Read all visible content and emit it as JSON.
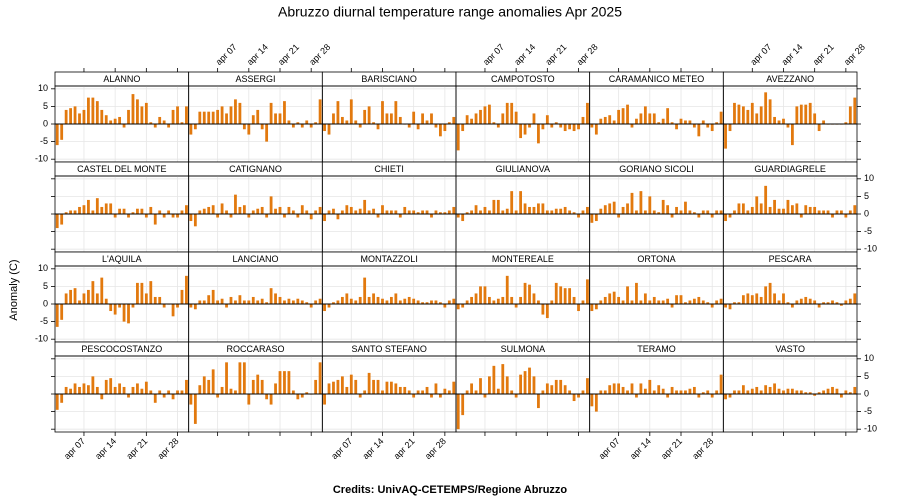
{
  "chart_data": {
    "type": "bar",
    "title": "Abruzzo diurnal temperature range anomalies Apr 2025",
    "ylabel": "Anomaly (C)",
    "caption": "Credits: UnivAQ-CETEMPS/Regione Abruzzo",
    "color": "#e2790e",
    "grid": true,
    "ylim": [
      -10.8,
      10.8
    ],
    "yticks": [
      -10,
      -5,
      0,
      5,
      10
    ],
    "x": [
      "2025-04-01",
      "2025-04-02",
      "2025-04-03",
      "2025-04-04",
      "2025-04-05",
      "2025-04-06",
      "2025-04-07",
      "2025-04-08",
      "2025-04-09",
      "2025-04-10",
      "2025-04-11",
      "2025-04-12",
      "2025-04-13",
      "2025-04-14",
      "2025-04-15",
      "2025-04-16",
      "2025-04-17",
      "2025-04-18",
      "2025-04-19",
      "2025-04-20",
      "2025-04-21",
      "2025-04-22",
      "2025-04-23",
      "2025-04-24",
      "2025-04-25",
      "2025-04-26",
      "2025-04-27",
      "2025-04-28",
      "2025-04-29",
      "2025-04-30"
    ],
    "xticks": [
      {
        "value": "2025-04-07",
        "label": "apr 07"
      },
      {
        "value": "2025-04-14",
        "label": "apr 14"
      },
      {
        "value": "2025-04-21",
        "label": "apr 21"
      },
      {
        "value": "2025-04-28",
        "label": "apr 28"
      }
    ],
    "panels": [
      {
        "name": "ALANNO",
        "values": [
          -6,
          -4.5,
          4,
          4.5,
          5,
          3,
          4,
          7.5,
          7.5,
          6.5,
          4,
          2.5,
          1,
          1.5,
          2,
          -1,
          4,
          8.5,
          7,
          5,
          6,
          0.5,
          -1,
          2,
          1,
          -1,
          4,
          5,
          0.5,
          5
        ]
      },
      {
        "name": "ASSERGI",
        "values": [
          -3,
          -1.5,
          3.5,
          3.5,
          3.5,
          3.5,
          4,
          5,
          3,
          5,
          7,
          6,
          -1.5,
          -3,
          2.5,
          4,
          -1.5,
          -5,
          6,
          3,
          3,
          6.5,
          1,
          -1,
          0.5,
          -1,
          1,
          -1,
          0.5,
          7
        ]
      },
      {
        "name": "BARISCIANO",
        "values": [
          -2,
          -3,
          3,
          6.5,
          2,
          1,
          7,
          1,
          -1,
          4,
          5,
          0.5,
          -1.5,
          6.5,
          3,
          3,
          6.5,
          2,
          0,
          -1,
          3.5,
          -1.5,
          3,
          1,
          3,
          -1,
          -3.5,
          -2,
          0.5,
          2
        ]
      },
      {
        "name": "CAMPOTOSTO",
        "values": [
          -7.5,
          -2,
          2.5,
          1.5,
          3,
          4,
          5,
          5.5,
          0.5,
          -1,
          3,
          6,
          6,
          3.5,
          -4,
          -3,
          -1,
          3,
          -5.5,
          -1.5,
          2.5,
          -1,
          0.5,
          -1,
          -2,
          -1.5,
          -2,
          -1.5,
          2,
          6
        ]
      },
      {
        "name": "CARAMANICO METEO",
        "values": [
          -1,
          -3,
          1.5,
          2,
          2.5,
          1,
          4,
          4.5,
          5.5,
          -1,
          1.5,
          3,
          5,
          3,
          3,
          0.5,
          1.5,
          4.5,
          0.5,
          -1.5,
          1.5,
          1,
          1,
          -1,
          -3.5,
          1,
          -1,
          -2,
          0.5,
          3.5
        ]
      },
      {
        "name": "AVEZZANO",
        "values": [
          -7,
          -2,
          6,
          5.5,
          5,
          4,
          6,
          3,
          5,
          9,
          7,
          2,
          1,
          1.5,
          -1,
          -6,
          5,
          5.5,
          5.5,
          6,
          3,
          -2,
          1,
          0,
          0,
          0,
          0,
          0.5,
          5,
          7.5
        ]
      },
      {
        "name": "CASTEL DEL MONTE",
        "values": [
          -4,
          -3,
          0.5,
          1,
          1,
          2,
          2.5,
          4,
          1,
          4.5,
          2,
          3,
          3,
          -1,
          1.5,
          1.5,
          -1,
          0.5,
          1.5,
          1.5,
          -1,
          2,
          -3,
          1,
          -1,
          1,
          -1,
          -1,
          1,
          2.5
        ]
      },
      {
        "name": "CATIGNANO",
        "values": [
          -2,
          -3.5,
          1,
          1.5,
          2,
          2.5,
          -1,
          3,
          1,
          -1,
          5.5,
          2,
          2.5,
          -1,
          1,
          1.5,
          2,
          -1,
          5,
          1.5,
          2,
          -1,
          2,
          1,
          -1,
          2.5,
          1,
          -1.5,
          1,
          2
        ]
      },
      {
        "name": "CHIETI",
        "values": [
          -2,
          1,
          1.5,
          -1.5,
          1,
          2.5,
          2,
          1,
          1.5,
          4,
          1,
          1.5,
          -1,
          2.5,
          1,
          1,
          1,
          -1,
          2,
          1,
          1,
          0.5,
          1,
          1,
          -1,
          1,
          0.5,
          0.5,
          1,
          2
        ]
      },
      {
        "name": "GIULIANOVA",
        "values": [
          -1,
          -2,
          0.5,
          1,
          2.5,
          1,
          2,
          1,
          4,
          4,
          1,
          1.5,
          6.5,
          1,
          6.5,
          3,
          2,
          2,
          3,
          3,
          1,
          1,
          1.5,
          1.5,
          2,
          1,
          0.5,
          -1,
          1,
          2
        ]
      },
      {
        "name": "GORIANO SICOLI",
        "values": [
          -2.5,
          -2,
          1.5,
          2.5,
          3,
          3.5,
          -1,
          2,
          3,
          6,
          1,
          6.5,
          1,
          5,
          1,
          0.5,
          4,
          2.5,
          -1,
          2,
          1,
          3.5,
          1,
          0.5,
          -1,
          1,
          1,
          -1,
          1,
          1
        ]
      },
      {
        "name": "GUARDIAGRELE",
        "values": [
          -2,
          -1,
          1,
          3,
          3,
          1,
          2,
          5,
          3,
          8,
          2,
          4,
          1.5,
          1.5,
          4,
          2.5,
          3,
          -1,
          2.5,
          2,
          2,
          1,
          1,
          1,
          -1,
          1,
          1,
          -1,
          1,
          2.5
        ]
      },
      {
        "name": "L'AQUILA",
        "values": [
          -6.5,
          -4.5,
          3,
          4,
          4.5,
          1,
          3,
          4,
          6.5,
          3,
          7.5,
          1.5,
          -2,
          -3,
          -1,
          -5,
          -5.5,
          -1,
          6,
          6,
          3,
          6.5,
          2,
          2,
          -1,
          0,
          -3.5,
          -1,
          4,
          8
        ]
      },
      {
        "name": "LANCIANO",
        "values": [
          -1,
          -1.5,
          1,
          1,
          2.5,
          4,
          1,
          1.5,
          -1,
          2,
          1,
          2.5,
          1,
          1,
          2,
          1,
          1.5,
          0.5,
          4.5,
          3,
          2,
          1,
          1.5,
          1,
          1.5,
          1,
          0.5,
          -1,
          1,
          1.5
        ]
      },
      {
        "name": "MONTAZZOLI",
        "values": [
          -2,
          -1,
          0.5,
          1,
          2,
          3,
          1.5,
          1,
          2,
          7.5,
          2,
          3,
          2,
          1.5,
          1,
          2,
          3,
          1,
          1.5,
          2,
          1.5,
          1,
          0.5,
          0.5,
          1,
          1,
          0.5,
          -1,
          1,
          1.5
        ]
      },
      {
        "name": "MONTEREALE",
        "values": [
          -1.5,
          -1,
          1,
          2,
          3,
          5,
          5,
          2,
          1,
          1.5,
          2,
          8,
          2,
          -1,
          2,
          6,
          5.5,
          3,
          1,
          -3,
          -4,
          1,
          6,
          5,
          4.5,
          4.5,
          2,
          -2,
          1,
          7
        ]
      },
      {
        "name": "ORTONA",
        "values": [
          -2,
          -1.5,
          1,
          2,
          3,
          3.5,
          2,
          1,
          5,
          1,
          6,
          1,
          3,
          1,
          2,
          1,
          1,
          1.5,
          -1,
          2.5,
          2.5,
          0.5,
          1,
          1.5,
          2,
          1,
          0.5,
          -1,
          1,
          1.5
        ]
      },
      {
        "name": "PESCARA",
        "values": [
          -1,
          -1.5,
          0.5,
          0.5,
          2.5,
          3,
          2.5,
          3,
          2,
          5,
          6,
          3,
          1,
          3,
          0.5,
          -1,
          1,
          1.5,
          2,
          1.5,
          1,
          -1,
          0.5,
          0.5,
          1,
          0.5,
          -0.5,
          1,
          1.5,
          3
        ]
      },
      {
        "name": "PESCOCOSTANZO",
        "values": [
          -4.5,
          -2.5,
          2,
          1.5,
          3,
          2,
          3,
          2.5,
          5,
          2,
          -1.5,
          4,
          4.5,
          2,
          3,
          2,
          -1,
          2,
          3,
          1.5,
          3.5,
          1,
          -2.5,
          1,
          -1,
          1,
          -1.5,
          1,
          1,
          4
        ]
      },
      {
        "name": "ROCCARASO",
        "values": [
          -3,
          -8.5,
          2.5,
          5,
          4,
          7,
          -1,
          2,
          9,
          1.5,
          1,
          9,
          9,
          -3,
          4,
          5.5,
          4,
          -1.5,
          -3,
          3,
          6.5,
          6.5,
          6.5,
          1,
          -1.5,
          -1,
          0.5,
          0,
          4,
          9
        ]
      },
      {
        "name": "SANTO STEFANO",
        "values": [
          -3,
          3,
          3.5,
          4,
          5,
          2,
          5.5,
          4,
          -1,
          1,
          6,
          4,
          4,
          1,
          3.5,
          3.5,
          3,
          2,
          2,
          1,
          -1,
          1,
          1,
          2,
          -1,
          3,
          -1,
          1.5,
          1,
          3.5
        ]
      },
      {
        "name": "SULMONA",
        "values": [
          -10,
          -6,
          1,
          3,
          1,
          4.5,
          -1,
          5,
          8,
          1.5,
          8.5,
          5,
          1,
          -1,
          5.5,
          6.5,
          7.5,
          5,
          -4,
          1,
          3,
          2.5,
          4,
          4,
          2.5,
          1,
          -2,
          -1,
          1,
          4.5
        ]
      },
      {
        "name": "TERAMO",
        "values": [
          -3.5,
          -5,
          1,
          1,
          2.5,
          3,
          3,
          2,
          1,
          3,
          -1,
          3,
          1.5,
          4,
          1,
          2.5,
          1.5,
          -1,
          2,
          1,
          1,
          1,
          1.5,
          2,
          -1,
          0.5,
          1,
          -1,
          1,
          5.5
        ]
      },
      {
        "name": "VASTO",
        "values": [
          -1.5,
          -1,
          1,
          1,
          2.5,
          1,
          1.5,
          2,
          1,
          2.5,
          2,
          3,
          1.5,
          1,
          1.5,
          1.5,
          1,
          1,
          0.5,
          0.5,
          -0.5,
          0.5,
          1,
          1.5,
          2,
          1.5,
          -1,
          1,
          0.5,
          2
        ]
      }
    ]
  }
}
